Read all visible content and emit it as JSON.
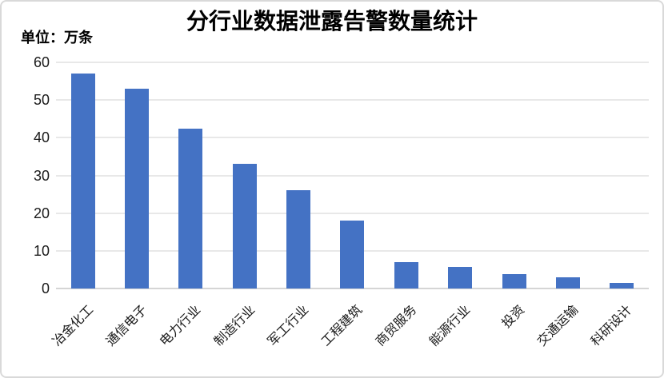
{
  "chart": {
    "title": "分行业数据泄露告警数量统计",
    "unit_label": "单位：万条"
  },
  "chart_data": {
    "type": "bar",
    "title": "分行业数据泄露告警数量统计",
    "unit_label": "单位：万条",
    "categories": [
      "冶金化工",
      "通信电子",
      "电力行业",
      "制造行业",
      "军工行业",
      "工程建筑",
      "商贸服务",
      "能源行业",
      "投资",
      "交通运输",
      "科研设计"
    ],
    "values": [
      57,
      53,
      42.5,
      33,
      26,
      18,
      7,
      5.7,
      3.9,
      2.9,
      1.4
    ],
    "xlabel": "",
    "ylabel": "",
    "ylim": [
      0,
      60
    ],
    "yticks": [
      0,
      10,
      20,
      30,
      40,
      50,
      60
    ],
    "ytick_step": 10,
    "grid": true,
    "legend": false,
    "layout": {
      "x_label_rotation_deg": 45
    },
    "colors": {
      "bar": "#4472C4",
      "gridline": "#E8E8E8",
      "axis_line": "#D5D5D5",
      "text": "#1a1a1a",
      "frame_border": "#D9D9D9",
      "background": "#FFFFFF"
    }
  }
}
